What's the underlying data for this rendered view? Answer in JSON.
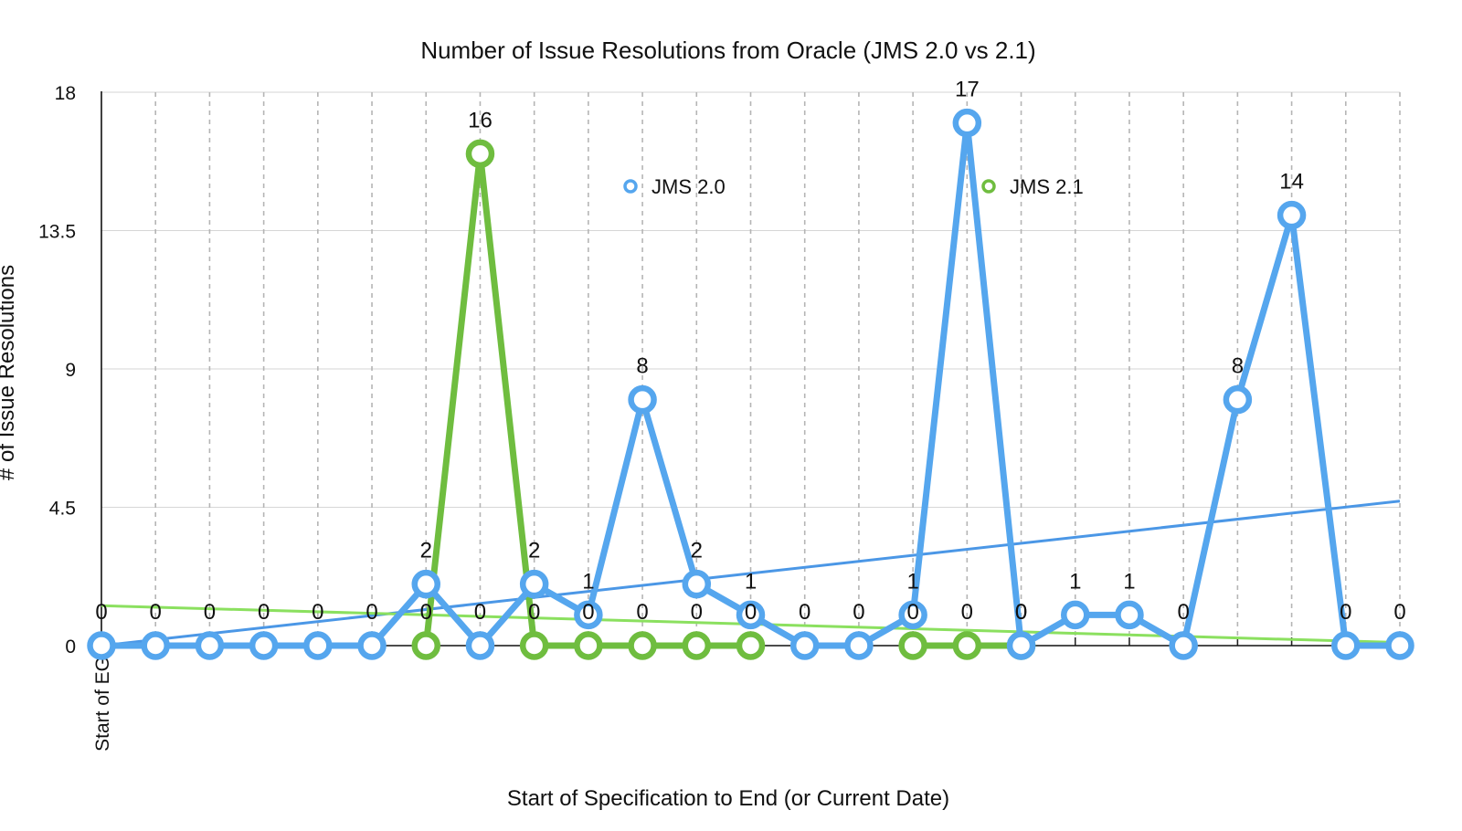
{
  "chart_data": {
    "type": "line",
    "title": "Number of Issue Resolutions from Oracle (JMS 2.0 vs 2.1)",
    "xlabel": "Start of Specification to End (or Current Date)",
    "ylabel": "# of Issue Resolutions",
    "categories": [
      "Start of EG",
      "",
      "",
      "",
      "",
      "",
      "",
      "",
      "",
      "",
      "",
      "",
      "",
      "",
      "",
      "",
      "",
      "",
      "",
      "",
      "",
      "",
      "",
      "",
      ""
    ],
    "ylim": [
      0,
      18
    ],
    "yticks": [
      "0",
      "4.5",
      "9",
      "13.5",
      "18"
    ],
    "grid": {
      "horizontal": true,
      "vertical": true,
      "vertical_style": "dashed"
    },
    "legend": {
      "placement": "top-center",
      "entries": [
        "JMS 2.0",
        "JMS 2.1"
      ]
    },
    "series": [
      {
        "name": "JMS 2.0",
        "color": "#55a6ee",
        "values": [
          0,
          0,
          0,
          0,
          0,
          0,
          2,
          0,
          2,
          1,
          8,
          2,
          1,
          0,
          0,
          1,
          17,
          0,
          1,
          1,
          0,
          8,
          14,
          0,
          0
        ],
        "labels": [
          "0",
          "0",
          "0",
          "0",
          "0",
          "0",
          "2",
          "0",
          "2",
          "1",
          "8",
          "2",
          "1",
          "0",
          "0",
          "1",
          "17",
          "0",
          "1",
          "1",
          "0",
          "8",
          "14",
          "0",
          "0"
        ],
        "trendline": {
          "start": 0,
          "end": 4.7,
          "color": "#4b97e6"
        }
      },
      {
        "name": "JMS 2.1",
        "color": "#6fbd3f",
        "values": [
          null,
          null,
          null,
          null,
          null,
          null,
          0,
          16,
          0,
          0,
          0,
          0,
          0,
          null,
          null,
          0,
          0,
          0,
          null,
          null,
          null,
          null,
          null,
          null,
          null
        ],
        "labels": [
          "",
          "",
          "",
          "",
          "",
          "",
          "0",
          "16",
          "0",
          "0",
          "0",
          "0",
          "0",
          "",
          "",
          "0",
          "0",
          "0",
          "",
          "",
          "",
          "",
          "",
          "",
          ""
        ],
        "trendline": {
          "start": 1.3,
          "end": 0.1,
          "color": "#8be05f"
        }
      }
    ]
  }
}
